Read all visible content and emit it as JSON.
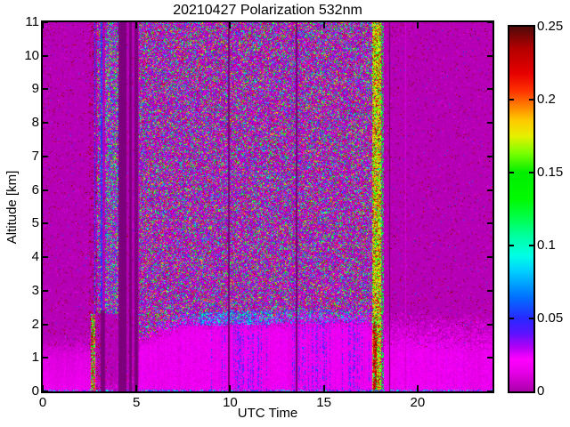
{
  "figure": {
    "background": "#ffffff",
    "frame_color": "#000000"
  },
  "chart_data": {
    "type": "heatmap",
    "title": "20210427 Polarization 532nm",
    "xlabel": "UTC Time",
    "ylabel": "Altitude [km]",
    "x_range": [
      0,
      24
    ],
    "y_range": [
      0,
      11
    ],
    "x_ticks": [
      0,
      5,
      10,
      15,
      20
    ],
    "y_ticks": [
      0,
      1,
      2,
      3,
      4,
      5,
      6,
      7,
      8,
      9,
      10,
      11
    ],
    "grid": false,
    "legend": "colorbar-right",
    "render_seed": 1337,
    "colorbar": {
      "min": 0,
      "max": 0.25,
      "tick_values": [
        0,
        0.05,
        0.1,
        0.15,
        0.2,
        0.25
      ],
      "tick_labels": [
        "0",
        "0.05",
        "0.1",
        "0.15",
        "0.2",
        "0.25"
      ],
      "colormap_stops": [
        [
          0.0,
          "#AA00AA"
        ],
        [
          0.013,
          "#E600E6"
        ],
        [
          0.022,
          "#FF00FF"
        ],
        [
          0.03,
          "#B400F5"
        ],
        [
          0.04,
          "#5A14FF"
        ],
        [
          0.05,
          "#2828FF"
        ],
        [
          0.065,
          "#0073FF"
        ],
        [
          0.082,
          "#00CDFF"
        ],
        [
          0.093,
          "#00FFE6"
        ],
        [
          0.105,
          "#00FFA8"
        ],
        [
          0.118,
          "#00FF50"
        ],
        [
          0.132,
          "#00FA00"
        ],
        [
          0.15,
          "#00EE00"
        ],
        [
          0.163,
          "#78FF00"
        ],
        [
          0.175,
          "#E6F000"
        ],
        [
          0.186,
          "#FFC800"
        ],
        [
          0.196,
          "#FF7D00"
        ],
        [
          0.206,
          "#FF3200"
        ],
        [
          0.218,
          "#E60000"
        ],
        [
          0.235,
          "#B40000"
        ],
        [
          0.25,
          "#500A0A"
        ]
      ]
    },
    "features": {
      "background": {
        "value_max": 0.005,
        "dark_speckle_prob": 0.022,
        "dark_speckle_range": [
          0.228,
          0.25
        ],
        "pink_speckle_prob": 0.012,
        "pink_speckle_range": [
          0.012,
          0.022
        ],
        "blue_speckle_prob": 0.004,
        "blue_speckle_range": [
          0.04,
          0.07
        ]
      },
      "dense_speckle_column": {
        "t": [
          2.45,
          3.09
        ],
        "prob": 0.13
      },
      "low_mottle": {
        "a_max": 3,
        "prob": 0.08,
        "value_range": [
          0.007,
          0.016
        ]
      },
      "boundary_layer": {
        "profile": [
          [
            0,
            1.45
          ],
          [
            3,
            1.5
          ],
          [
            5,
            1.5
          ],
          [
            6.5,
            1.95
          ],
          [
            7.5,
            2.15
          ],
          [
            12,
            2.2
          ],
          [
            17.3,
            2.25
          ],
          [
            17.8,
            1.95
          ],
          [
            21,
            1.9
          ],
          [
            24,
            1.85
          ]
        ],
        "fade": 0.4,
        "fade_wide_t": 18,
        "fade_wide": 0.75,
        "value_range": [
          0.01,
          0.024
        ],
        "column_mottle": 0.5
      },
      "bl_dim_t": 2.85,
      "bl_suppressed_t": [
        2.85,
        5.12
      ],
      "suppressed_bottom": {
        "a_max": 0.4,
        "prob": 0.3,
        "value_range": [
          0.006,
          0.014
        ]
      },
      "noise_regions": [
        {
          "t": [
            5.15,
            17.6
          ],
          "bg_prob": 0.42,
          "value_pow": 1.7,
          "value_max": 0.24
        },
        {
          "t": [
            3.33,
            4.04
          ],
          "a_min": 2.3,
          "bg_prob": 0.35,
          "value_pow": 1.4,
          "value_max": 0.2
        },
        {
          "t": [
            2.9,
            3.09
          ],
          "a_min": 2.3,
          "bg_prob": 0.5,
          "value_pow": 1.6,
          "value_max": 0.22
        }
      ],
      "gap_stripes": {
        "t_list": [
          [
            4.04,
            4.45
          ],
          [
            4.61,
            4.75
          ],
          [
            4.9,
            5.08
          ]
        ]
      },
      "low_gap": {
        "t": [
          3.09,
          3.33
        ],
        "a_max": 2.4
      },
      "blue_lines": {
        "t_list": [
          [
            2.76,
            2.82
          ],
          [
            3.1,
            3.17
          ]
        ],
        "value_range": [
          0.045,
          0.06
        ]
      },
      "morning_low_stripe": {
        "t": [
          2.57,
          2.8
        ],
        "a_max": 2.3,
        "fill_prob": 0.8,
        "mix": [
          [
            0.5,
            [
              0.19,
              0.25
            ]
          ],
          [
            0.3,
            [
              0.1,
              0.16
            ]
          ],
          [
            0.2,
            [
              0.13,
              0.185
            ]
          ]
        ]
      },
      "sunset_stripe": {
        "t": [
          17.6,
          18.05
        ],
        "mix": [
          [
            0.45,
            [
              0.16,
              0.185
            ]
          ],
          [
            0.3,
            [
              0.19,
              0.245
            ]
          ],
          [
            0.15,
            [
              0.1,
              0.145
            ]
          ],
          [
            0.1,
            [
              0.0,
              0.25
            ]
          ]
        ],
        "red_core": {
          "t": [
            17.62,
            17.82
          ],
          "a_max": 2.1,
          "value_range": [
            0.2,
            0.25
          ],
          "green_prob": 0.18,
          "green_range": [
            0.1,
            0.145
          ]
        }
      },
      "green_edge_column": {
        "t": [
          18.05,
          18.18
        ],
        "fill_prob": 0.45,
        "value_range": [
          0.1,
          0.15
        ]
      },
      "dark_line": {
        "t": [
          18.48,
          18.54
        ]
      },
      "thin_dark_lines": [
        [
          9.9,
          9.96
        ],
        [
          13.52,
          13.58
        ]
      ],
      "faint_line": {
        "t": [
          19.32,
          19.38
        ],
        "value_range": [
          0.006,
          0.012
        ]
      },
      "cyan_fringe": {
        "t": [
          6.8,
          17.55
        ],
        "half_width": 0.2,
        "strong_t": [
          8.3,
          12.2
        ],
        "prob_strong": 0.45,
        "prob_weak": 0.22,
        "value_range": [
          0.045,
          0.105
        ]
      },
      "virga_streaks": {
        "bands": [
          [
            9.0,
            12.0
          ],
          [
            13.3,
            17.55
          ]
        ],
        "column_prob": 0.3,
        "pixel_prob": 0.35,
        "value_range": [
          0.033,
          0.065
        ]
      },
      "bottom_edge": {
        "a_max": 0.06,
        "mix_prob": 0.55,
        "value_max": 0.11
      }
    }
  }
}
